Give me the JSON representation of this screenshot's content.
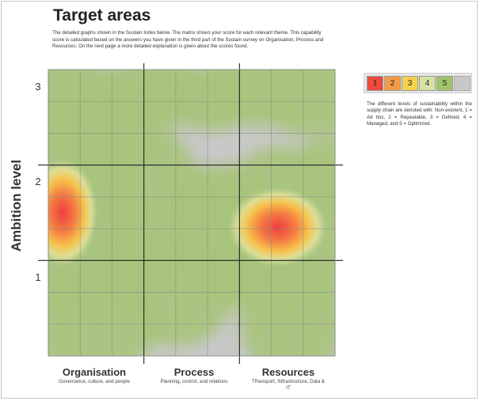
{
  "title": "Target areas",
  "intro": "The detailed graphs shown in the Sustain Index below. The matrix shows your score for each relevant theme. This capability score is calculated based on the answers you have given in the third part of the Sustain survey on Organisation, Process and Resources. On the next page a more detailed explanation is given about the scores found.",
  "legend": {
    "items": [
      {
        "label": "1",
        "color": "#ee4a3c"
      },
      {
        "label": "2",
        "color": "#f59a45"
      },
      {
        "label": "3",
        "color": "#f6d14e"
      },
      {
        "label": "4",
        "color": "#d6e3a4"
      },
      {
        "label": "5",
        "color": "#a0c36a"
      },
      {
        "label": "",
        "color": "#c8c8c8"
      }
    ],
    "note": "The different levels of sustainability within the supply chain are denoted with: Non-existent, 1 = Ad hoc, 2 = Repeatable, 3 = Defined, 4 = Managed, and 5 = Optimized."
  },
  "chart_data": {
    "type": "heatmap",
    "title": "Target areas",
    "xlabel": "",
    "ylabel": "Ambition level",
    "y_ticks": [
      "1",
      "2",
      "3"
    ],
    "ylim": [
      0,
      3
    ],
    "x_categories": [
      {
        "label": "Organisation",
        "sub": "Governance, culture, and people"
      },
      {
        "label": "Process",
        "sub": "Planning, control, and relations"
      },
      {
        "label": "Resources",
        "sub": "TRansport, INfrastructure, Data & IT"
      }
    ],
    "grid_columns": 9,
    "grid_rows": 9,
    "background_color": "#c8c8c8",
    "base_color": "#a8c47c",
    "hotspots": [
      {
        "category": "Organisation",
        "x": 0.15,
        "y": 1.5,
        "level": 1
      },
      {
        "category": "Resources",
        "x": 2.4,
        "y": 1.35,
        "level": 1
      }
    ],
    "grid": true
  }
}
